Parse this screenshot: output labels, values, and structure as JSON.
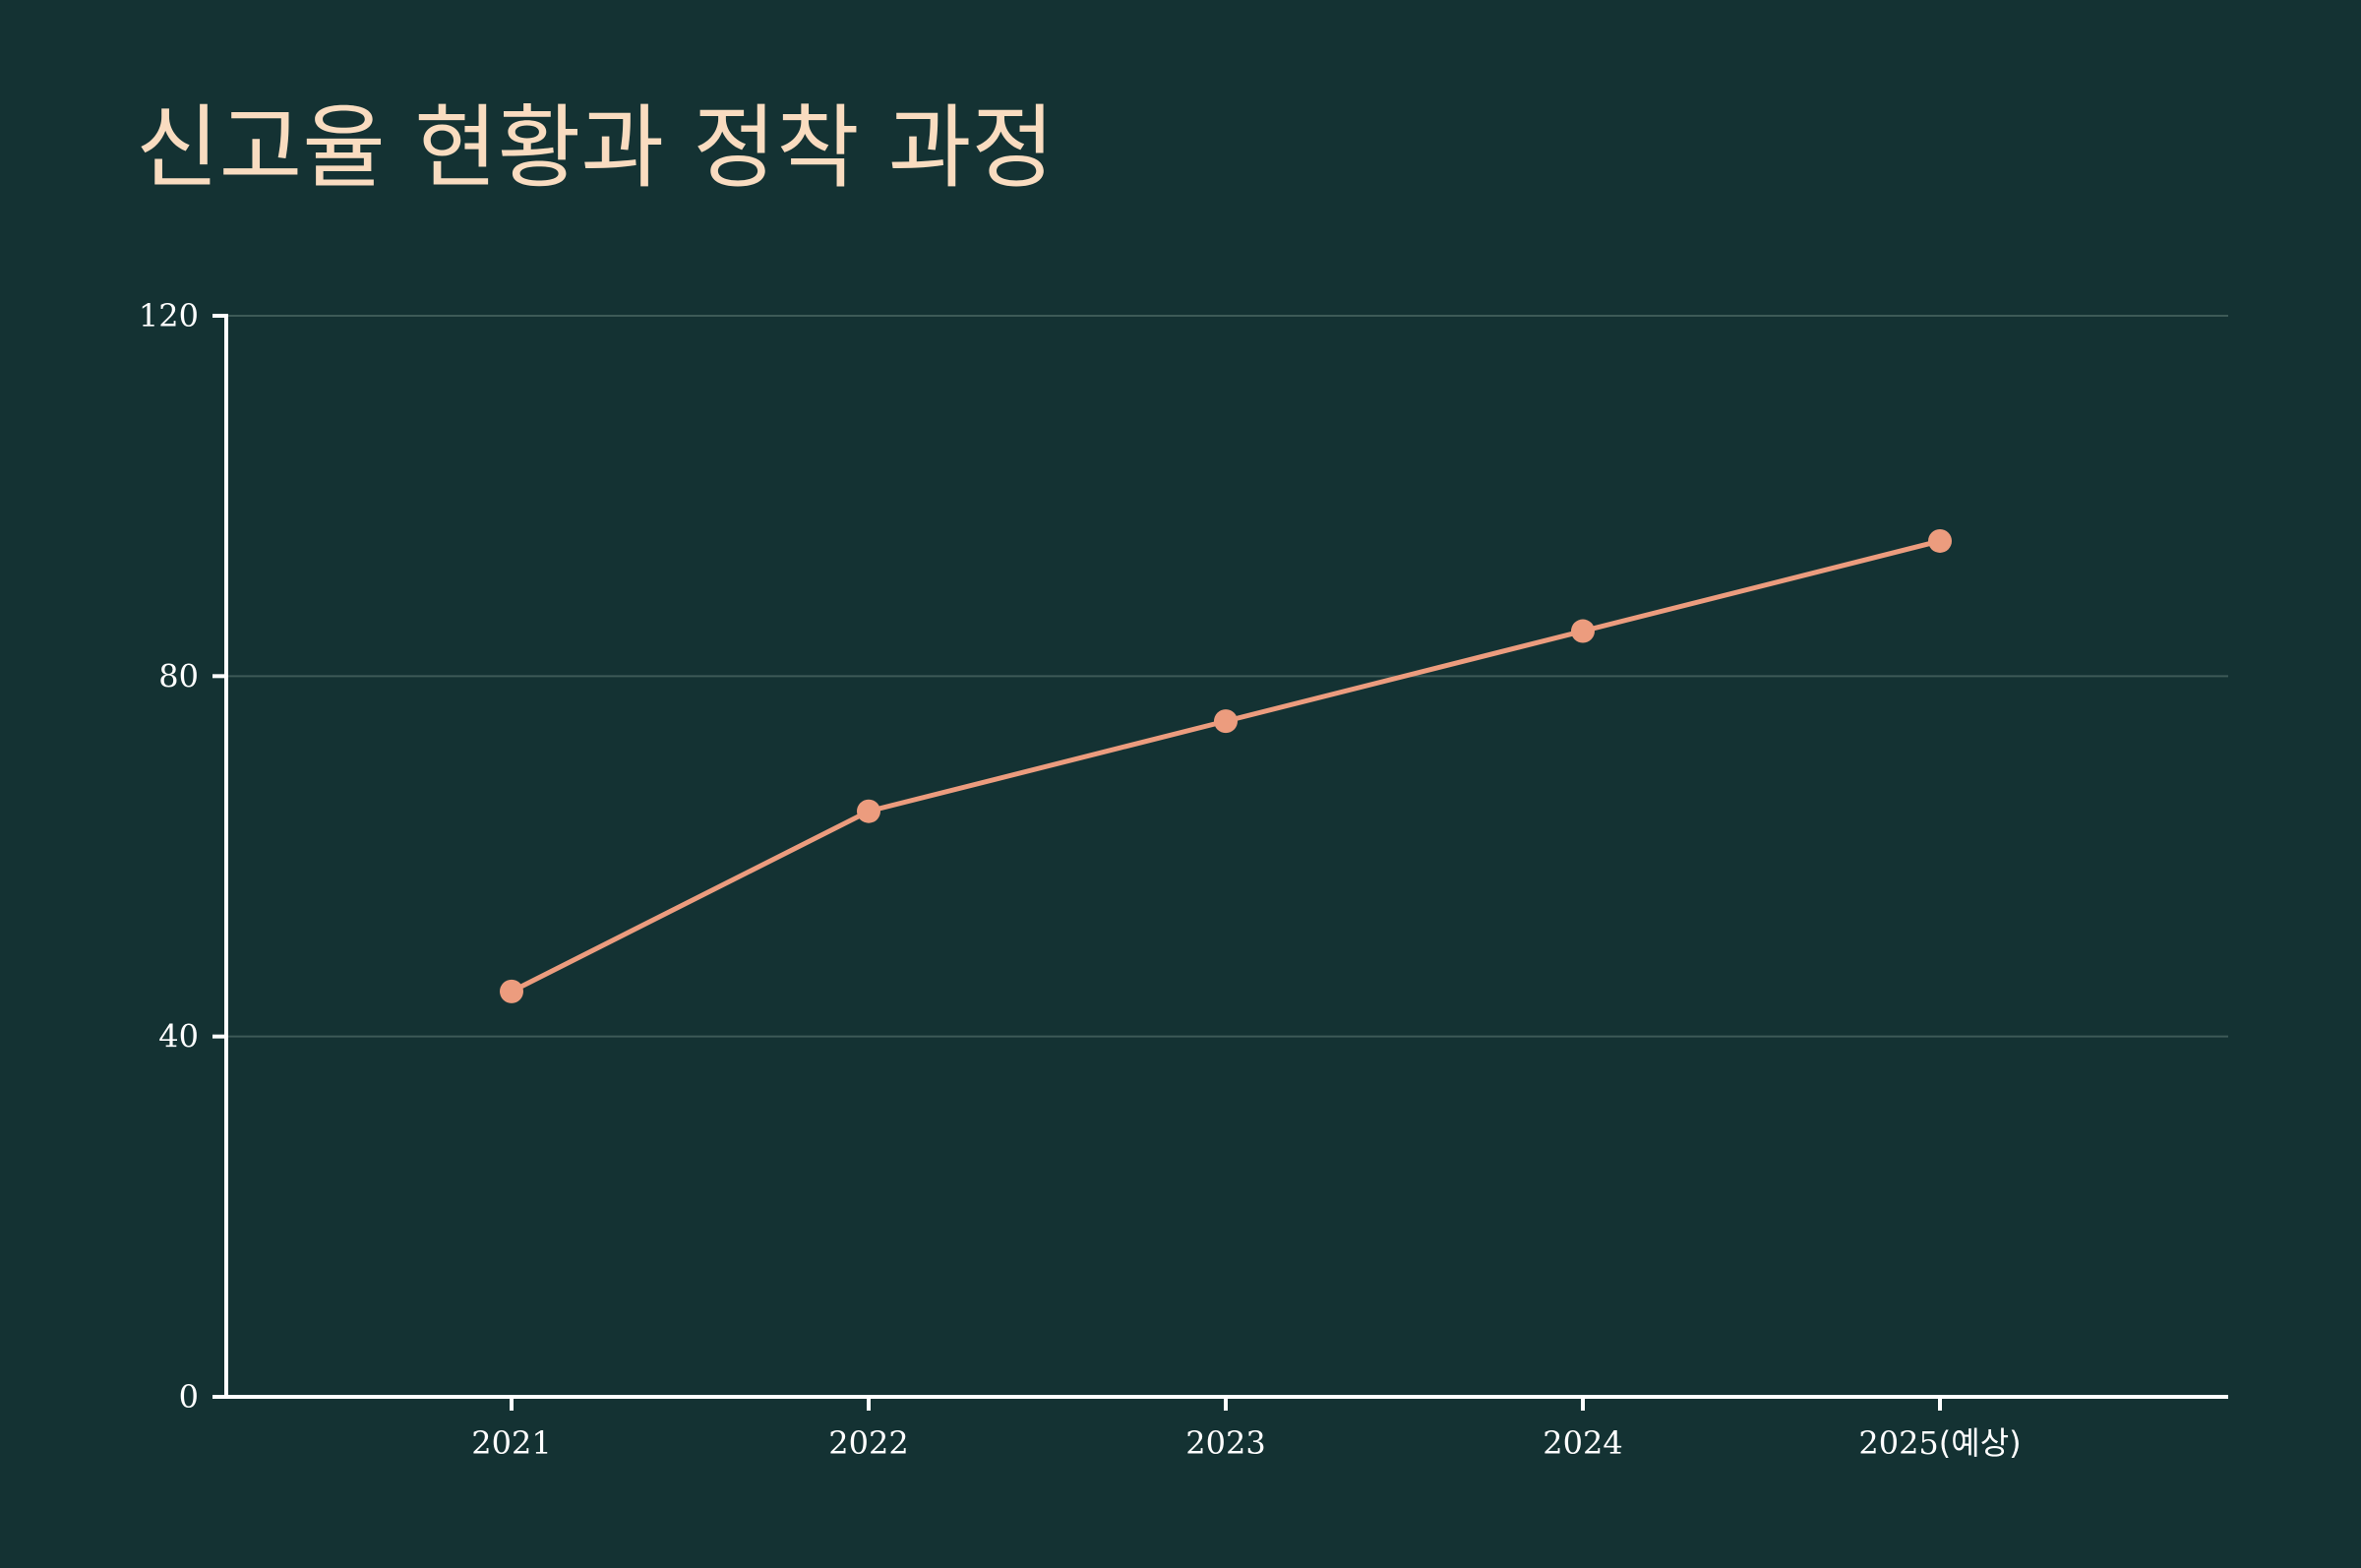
{
  "colors": {
    "background": "#143233",
    "title": "#f9dcc0",
    "line": "#ec9c7e",
    "axis": "#ffffff",
    "grid": "#3d5a57"
  },
  "chart_data": {
    "type": "line",
    "title": "신고율 현황과 정착 과정",
    "xlabel": "",
    "ylabel": "",
    "categories": [
      "2021",
      "2022",
      "2023",
      "2024",
      "2025(예상)"
    ],
    "series": [
      {
        "values": [
          45,
          65,
          75,
          85,
          95
        ]
      }
    ],
    "yticks": [
      "0",
      "40",
      "80",
      "120"
    ],
    "ylim": [
      0,
      120
    ],
    "grid": true,
    "legend": "none"
  }
}
